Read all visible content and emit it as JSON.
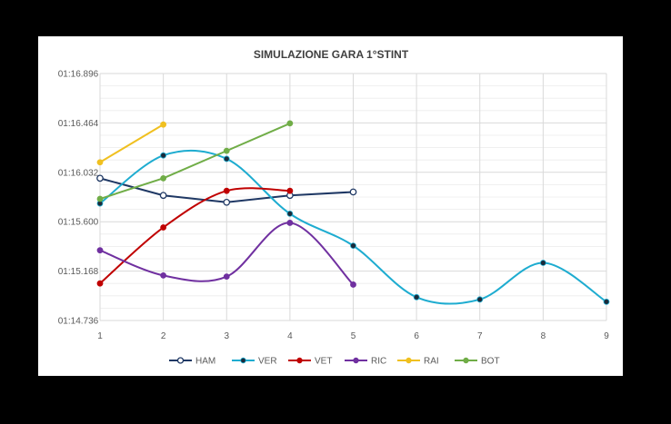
{
  "chart_data": {
    "type": "line",
    "title": "SIMULAZIONE GARA 1°STINT",
    "xlabel": "",
    "ylabel": "",
    "x": [
      1,
      2,
      3,
      4,
      5,
      6,
      7,
      8,
      9
    ],
    "x_ticks": [
      "1",
      "2",
      "3",
      "4",
      "5",
      "6",
      "7",
      "8",
      "9"
    ],
    "y_ticks": [
      "01:14.736",
      "01:15.168",
      "01:15.600",
      "01:16.032",
      "01:16.464",
      "01:16.896"
    ],
    "ylim_seconds": [
      74.736,
      76.896
    ],
    "y_tick_step_seconds": 0.432,
    "grid": true,
    "legend_position": "bottom",
    "series": [
      {
        "name": "HAM",
        "color": "#1f3864",
        "marker": "hollow",
        "smooth": false,
        "x": [
          1,
          2,
          3,
          4,
          5
        ],
        "y": [
          75.98,
          75.83,
          75.77,
          75.83,
          75.86
        ]
      },
      {
        "name": "VER",
        "color": "#1eacd0",
        "marker": "filled",
        "smooth": true,
        "x": [
          1,
          2,
          3,
          4,
          5,
          6,
          7,
          8,
          9
        ],
        "y": [
          75.76,
          76.18,
          76.15,
          75.67,
          75.39,
          74.94,
          74.92,
          75.24,
          74.9
        ]
      },
      {
        "name": "VET",
        "color": "#c00000",
        "marker": "filled",
        "smooth": true,
        "x": [
          1,
          2,
          3,
          4
        ],
        "y": [
          75.06,
          75.55,
          75.87,
          75.87
        ]
      },
      {
        "name": "RIC",
        "color": "#7030a0",
        "marker": "filled",
        "smooth": true,
        "x": [
          1,
          2,
          3,
          4,
          5
        ],
        "y": [
          75.35,
          75.13,
          75.12,
          75.59,
          75.05
        ]
      },
      {
        "name": "RAI",
        "color": "#f0c020",
        "marker": "filled",
        "smooth": false,
        "x": [
          1,
          2
        ],
        "y": [
          76.12,
          76.45
        ]
      },
      {
        "name": "BOT",
        "color": "#70ad47",
        "marker": "filled",
        "smooth": false,
        "x": [
          1,
          2,
          3,
          4
        ],
        "y": [
          75.8,
          75.98,
          76.22,
          76.46
        ]
      }
    ]
  }
}
